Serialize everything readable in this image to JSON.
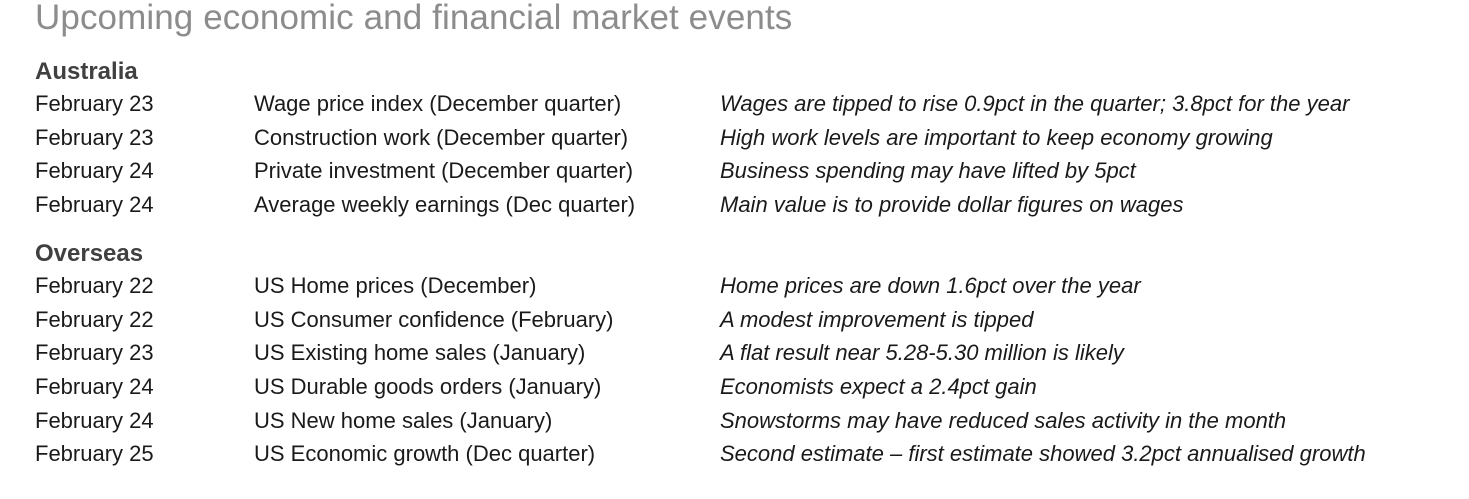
{
  "title": "Upcoming economic and financial market events",
  "sections": [
    {
      "heading": "Australia",
      "rows": [
        {
          "date": "February 23",
          "event": "Wage price index (December quarter)",
          "note": "Wages are tipped to rise 0.9pct in the quarter; 3.8pct for the year"
        },
        {
          "date": "February 23",
          "event": "Construction work (December quarter)",
          "note": "High work levels are important to keep economy growing"
        },
        {
          "date": "February 24",
          "event": "Private investment (December quarter)",
          "note": "Business spending may have lifted by 5pct"
        },
        {
          "date": "February 24",
          "event": "Average weekly earnings (Dec quarter)",
          "note": "Main value is to provide dollar figures on wages"
        }
      ]
    },
    {
      "heading": "Overseas",
      "rows": [
        {
          "date": "February 22",
          "event": "US Home prices (December)",
          "note": "Home prices are down 1.6pct over the year"
        },
        {
          "date": "February 22",
          "event": "US Consumer confidence (February)",
          "note": "A modest improvement is tipped"
        },
        {
          "date": "February 23",
          "event": "US Existing home sales (January)",
          "note": "A flat result near 5.28-5.30 million is likely"
        },
        {
          "date": "February 24",
          "event": "US Durable goods orders (January)",
          "note": "Economists expect a 2.4pct gain"
        },
        {
          "date": "February 24",
          "event": "US New home sales (January)",
          "note": "Snowstorms may have reduced sales activity in the month"
        },
        {
          "date": "February 25",
          "event": "US Economic growth (Dec quarter)",
          "note": "Second estimate – first estimate showed 3.2pct annualised growth"
        }
      ]
    }
  ]
}
